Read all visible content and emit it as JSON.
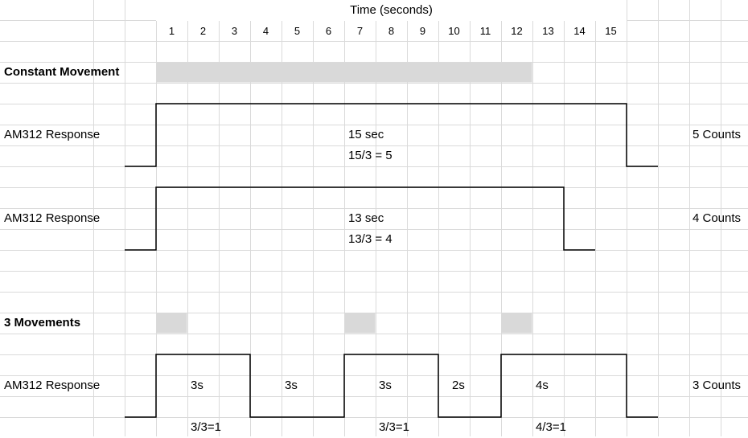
{
  "header": {
    "title": "Time (seconds)",
    "ticks": [
      "1",
      "2",
      "3",
      "4",
      "5",
      "6",
      "7",
      "8",
      "9",
      "10",
      "11",
      "12",
      "13",
      "14",
      "15"
    ]
  },
  "sections": {
    "constant": {
      "label": "Constant Movement",
      "movement_span": [
        1,
        12
      ],
      "responses": [
        {
          "label": "AM312 Response",
          "duration_text": "15 sec",
          "formula_text": "15/3 = 5",
          "count_text": "5 Counts"
        },
        {
          "label": "AM312 Response",
          "duration_text": "13 sec",
          "formula_text": "13/3 = 4",
          "count_text": "4 Counts"
        }
      ]
    },
    "three_movements": {
      "label": "3 Movements",
      "movement_cells": [
        1,
        7,
        12
      ],
      "response": {
        "label": "AM312 Response",
        "segments": [
          "3s",
          "3s",
          "3s",
          "2s",
          "4s"
        ],
        "formulas": [
          "3/3=1",
          "3/3=1",
          "4/3=1"
        ],
        "count_text": "3 Counts"
      }
    }
  },
  "colors": {
    "gridline": "#dadada",
    "movement_fill": "#d9d9d9",
    "signal": "#000000"
  }
}
